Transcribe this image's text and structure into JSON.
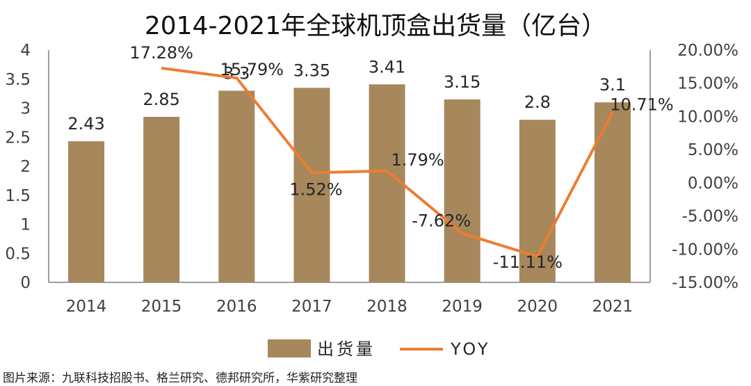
{
  "chart_data": {
    "type": "bar+line",
    "title": "2014-2021年全球机顶盒出货量（亿台）",
    "categories": [
      "2014",
      "2015",
      "2016",
      "2017",
      "2018",
      "2019",
      "2020",
      "2021"
    ],
    "series": [
      {
        "name": "出货量",
        "type": "bar",
        "axis": "left",
        "color": "#A6885C",
        "values": [
          2.43,
          2.85,
          3.3,
          3.35,
          3.41,
          3.15,
          2.8,
          3.1
        ],
        "labels": [
          "2.43",
          "2.85",
          "3.3",
          "3.35",
          "3.41",
          "3.15",
          "2.8",
          "3.1"
        ]
      },
      {
        "name": "YOY",
        "type": "line",
        "axis": "right",
        "color": "#ED7D31",
        "values": [
          null,
          17.28,
          15.79,
          1.52,
          1.79,
          -7.62,
          -11.11,
          10.71
        ],
        "labels": [
          "",
          "17.28%",
          "15.79%",
          "1.52%",
          "1.79%",
          "-7.62%",
          "-11.11%",
          "10.71%"
        ]
      }
    ],
    "y_left": {
      "min": 0,
      "max": 4,
      "ticks": [
        "0",
        "0.5",
        "1",
        "1.5",
        "2",
        "2.5",
        "3",
        "3.5",
        "4"
      ]
    },
    "y_right": {
      "min": -15,
      "max": 20,
      "ticks": [
        "-15.00%",
        "-10.00%",
        "-5.00%",
        "0.00%",
        "5.00%",
        "10.00%",
        "15.00%",
        "20.00%"
      ]
    },
    "grid": false,
    "legend_position": "bottom"
  },
  "source_note": "图片来源：九联科技招股书、格兰研究、德邦研究所，华紫研究整理"
}
